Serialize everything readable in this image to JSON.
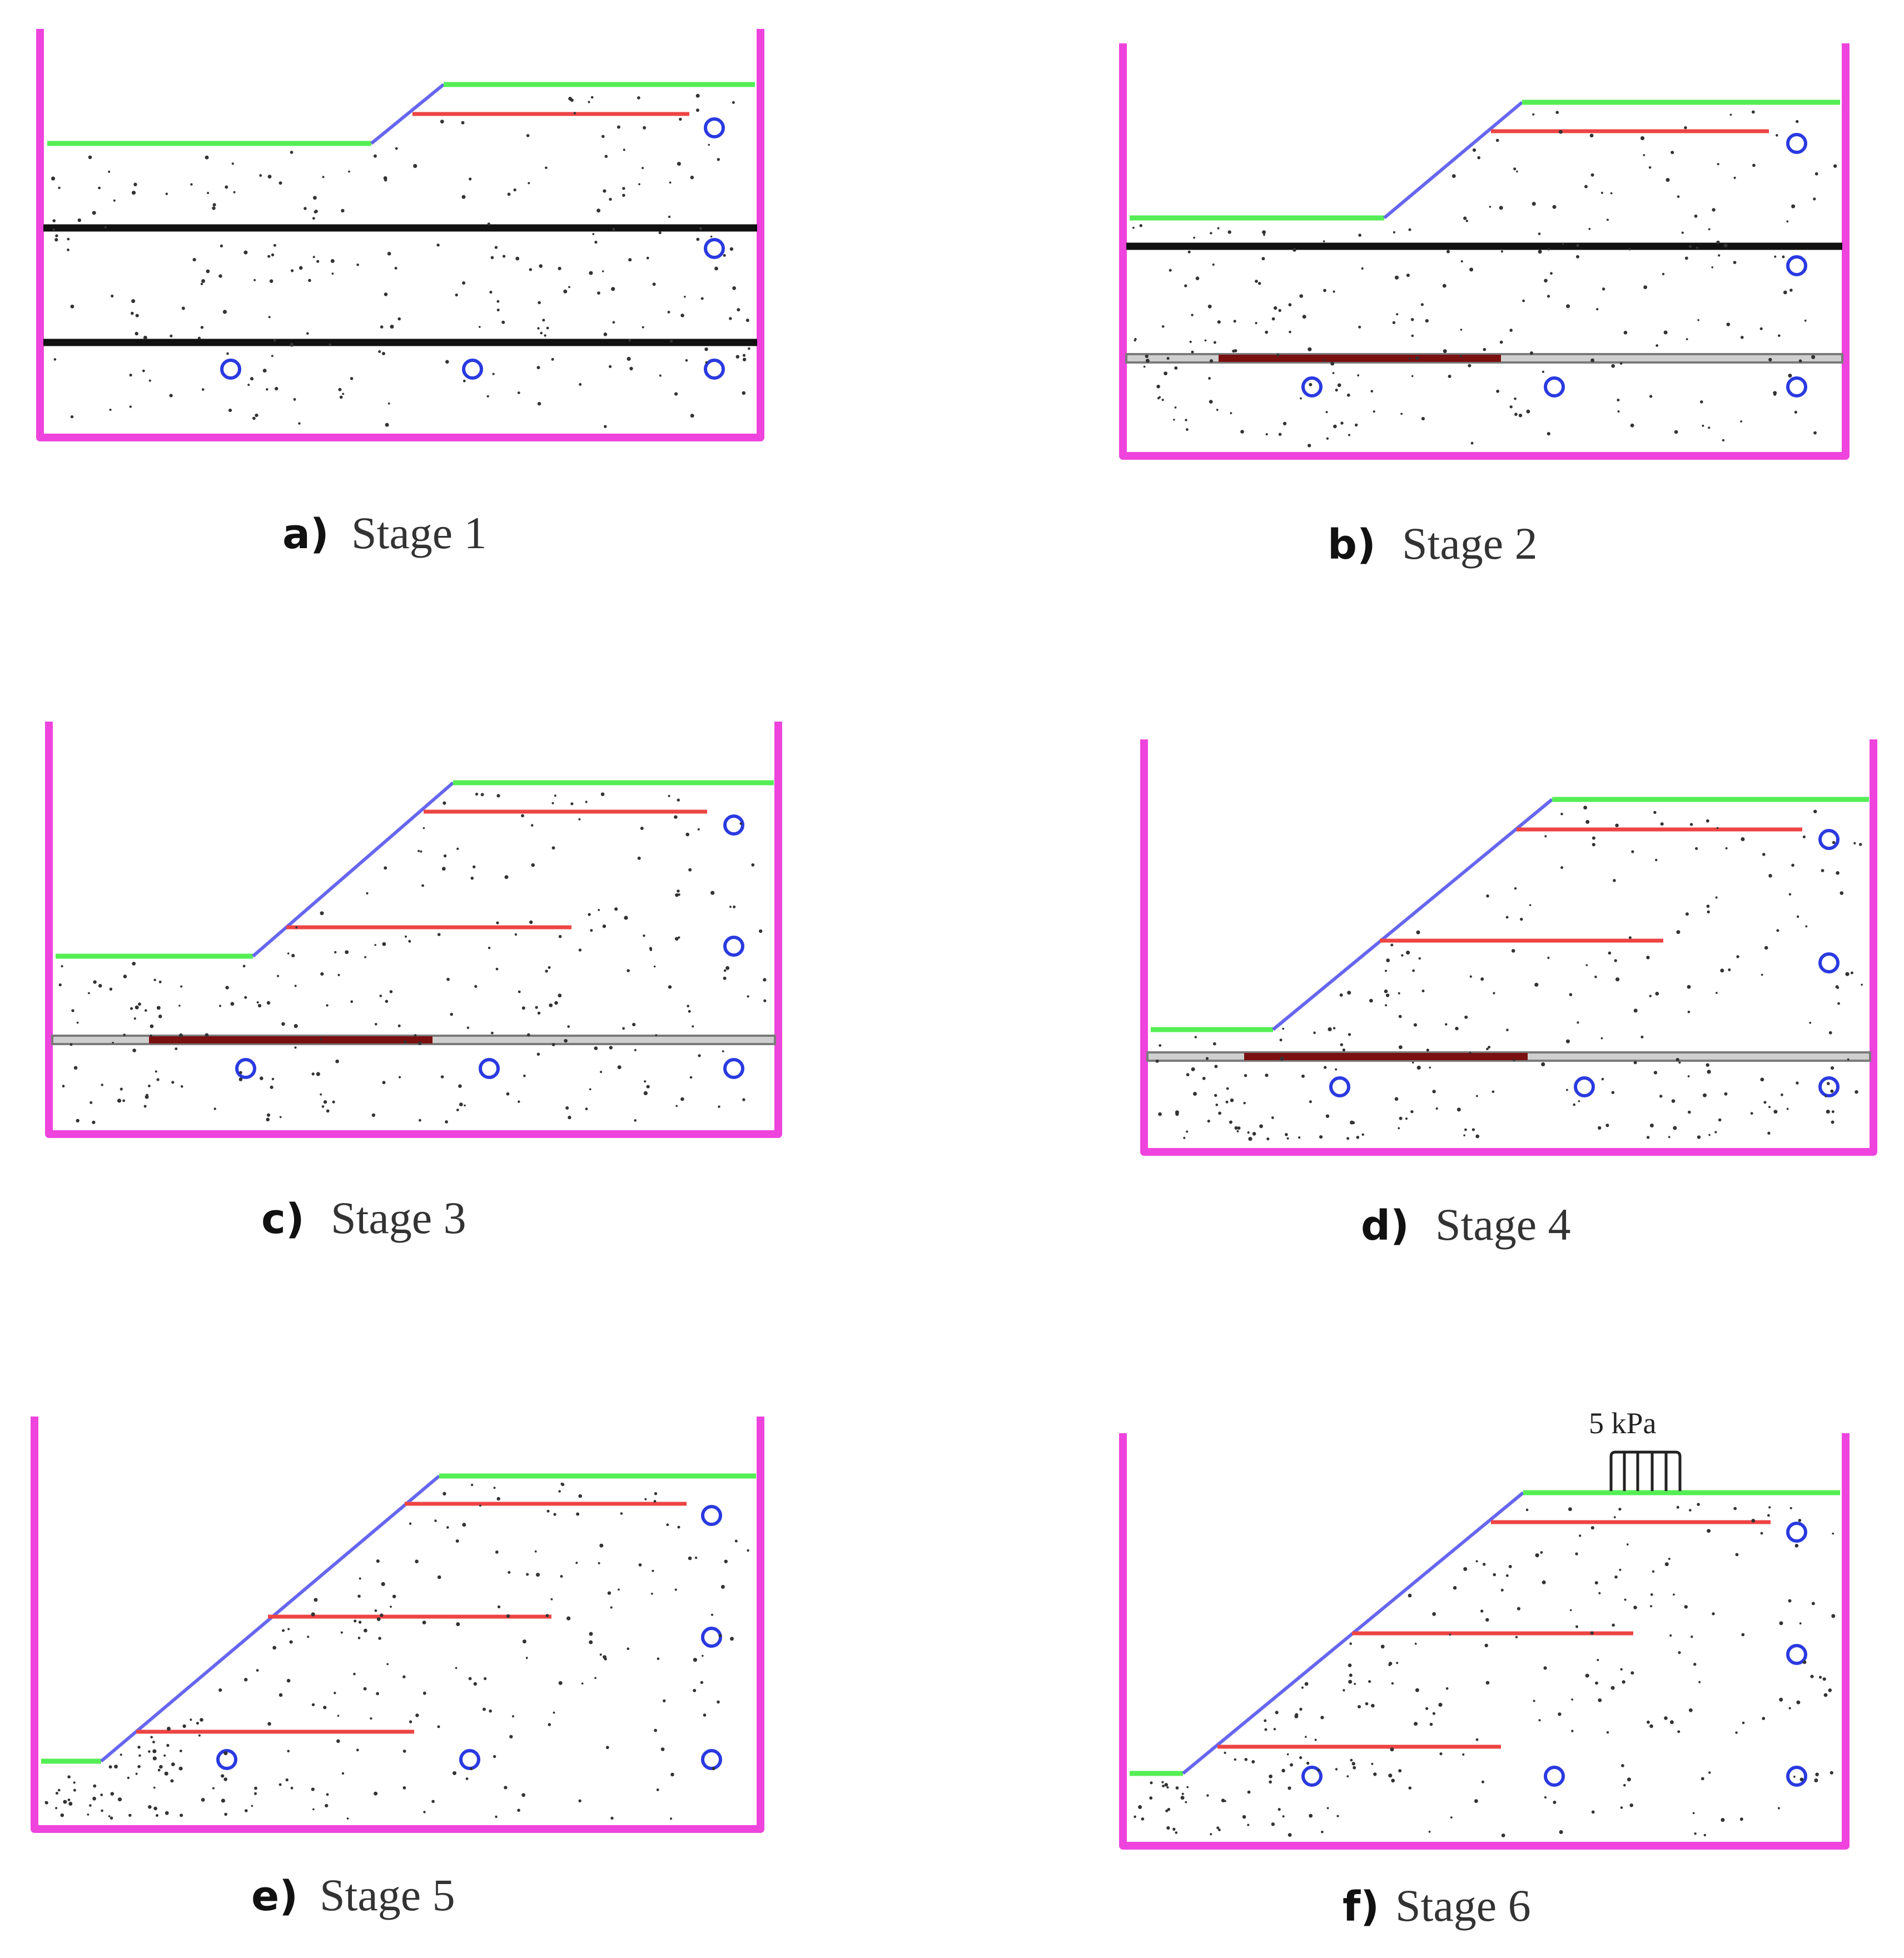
{
  "colors": {
    "wall": "#ee44dd",
    "ground_surface": "#55ee55",
    "slope_face": "#6666ee",
    "reinforcement": "#ee4444",
    "temporary_support": "#111111",
    "support_outline": "#7a7a7a",
    "weak_layer": "#7a1010",
    "marker": "#2a3ae0",
    "soil_dots": "#333333"
  },
  "panels": [
    {
      "tag": "a)",
      "caption": "Stage 1",
      "load_label": ""
    },
    {
      "tag": "b)",
      "caption": "Stage 2",
      "load_label": ""
    },
    {
      "tag": "c)",
      "caption": "Stage 3",
      "load_label": ""
    },
    {
      "tag": "d)",
      "caption": "Stage 4",
      "load_label": ""
    },
    {
      "tag": "e)",
      "caption": "Stage 5",
      "load_label": ""
    },
    {
      "tag": "f)",
      "caption": "Stage 6",
      "load_label": "5 kPa"
    }
  ]
}
